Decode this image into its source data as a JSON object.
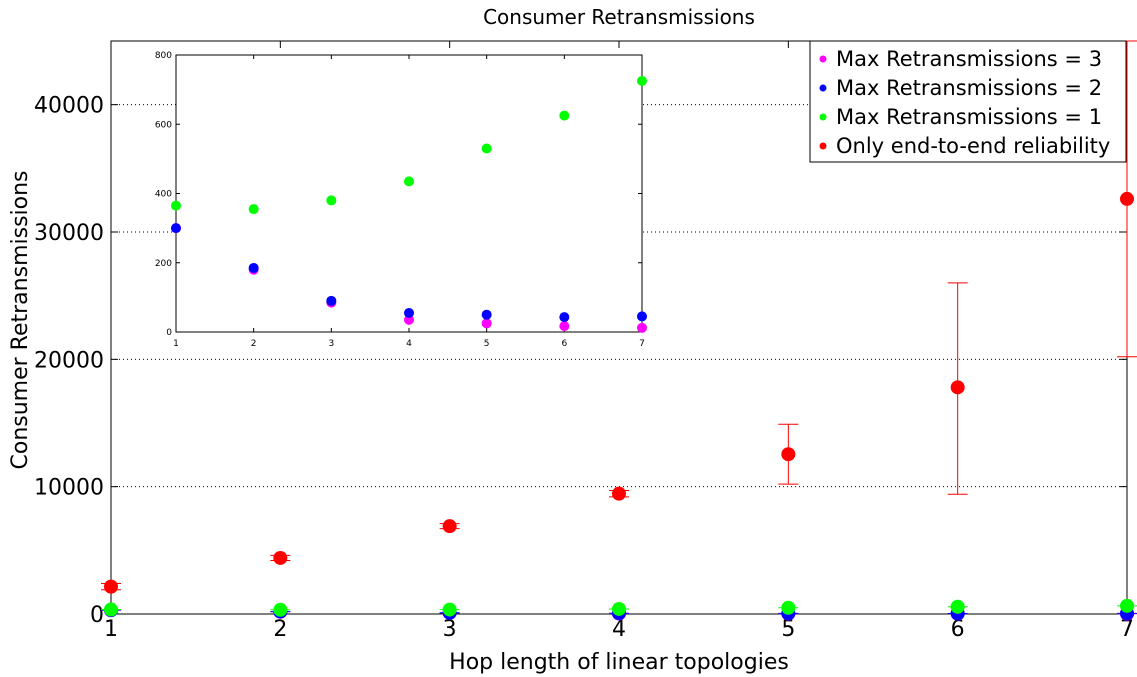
{
  "chart_data": {
    "type": "scatter",
    "title": "Consumer Retransmissions",
    "xlabel": "Hop length of linear topologies",
    "ylabel": "Consumer Retransmissions",
    "xlim": [
      1,
      7
    ],
    "ylim": [
      0,
      45000
    ],
    "x_ticks": [
      1,
      2,
      3,
      4,
      5,
      6,
      7
    ],
    "x_tick_labels": [
      "1",
      "2",
      "3",
      "4",
      "5",
      "6",
      "7"
    ],
    "y_ticks": [
      0,
      10000,
      20000,
      30000,
      40000
    ],
    "y_tick_labels": [
      "0",
      "10000",
      "20000",
      "30000",
      "40000"
    ],
    "grid": true,
    "legend_position": "top-right",
    "series": [
      {
        "name": "Max Retransmissions = 3",
        "color": "#ff00ff",
        "x": [
          1,
          2,
          3,
          4,
          5,
          6,
          7
        ],
        "y": [
          300,
          180,
          90,
          40,
          30,
          25,
          20
        ]
      },
      {
        "name": "Max Retransmissions = 2",
        "color": "#0000ff",
        "x": [
          1,
          2,
          3,
          4,
          5,
          6,
          7
        ],
        "y": [
          300,
          190,
          95,
          60,
          50,
          40,
          45
        ]
      },
      {
        "name": "Max Retransmissions = 1",
        "color": "#00ff00",
        "x": [
          1,
          2,
          3,
          4,
          5,
          6,
          7
        ],
        "y": [
          350,
          330,
          345,
          395,
          490,
          570,
          640
        ]
      },
      {
        "name": "Only end-to-end reliability",
        "color": "#ff0000",
        "x": [
          1,
          2,
          3,
          4,
          5,
          6,
          7
        ],
        "y": [
          2150,
          4400,
          6900,
          9450,
          12550,
          17800,
          32600
        ],
        "err_low": [
          1900,
          4200,
          6700,
          9200,
          10200,
          9400,
          20200
        ],
        "err_high": [
          2400,
          4600,
          7100,
          9700,
          14900,
          26000,
          45000
        ]
      }
    ],
    "inset": {
      "xlim": [
        1,
        7
      ],
      "ylim": [
        0,
        800
      ],
      "x_ticks": [
        1,
        2,
        3,
        4,
        5,
        6,
        7
      ],
      "x_tick_labels": [
        "1",
        "2",
        "3",
        "4",
        "5",
        "6",
        "7"
      ],
      "y_ticks": [
        0,
        200,
        400,
        600,
        800
      ],
      "y_tick_labels": [
        "0",
        "200",
        "400",
        "600",
        "800"
      ],
      "series": [
        {
          "color": "#ff00ff",
          "x": [
            1,
            2,
            3,
            4,
            5,
            6,
            7
          ],
          "y": [
            300,
            180,
            85,
            35,
            25,
            17,
            12
          ]
        },
        {
          "color": "#0000ff",
          "x": [
            1,
            2,
            3,
            4,
            5,
            6,
            7
          ],
          "y": [
            300,
            185,
            90,
            55,
            50,
            43,
            45
          ]
        },
        {
          "color": "#00ff00",
          "x": [
            1,
            2,
            3,
            4,
            5,
            6,
            7
          ],
          "y": [
            365,
            355,
            380,
            435,
            530,
            625,
            725
          ]
        }
      ]
    }
  }
}
